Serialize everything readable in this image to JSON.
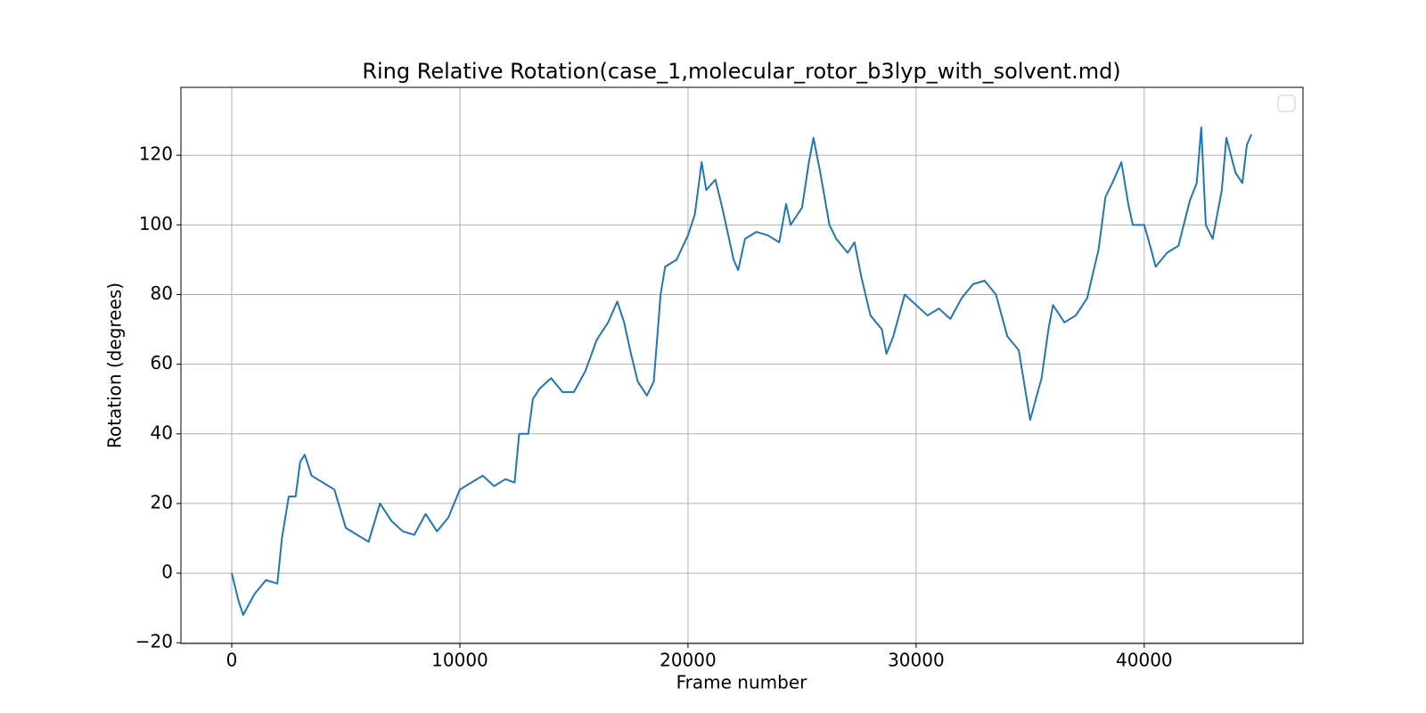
{
  "chart_data": {
    "type": "line",
    "title": "Ring Relative Rotation(case_1,molecular_rotor_b3lyp_with_solvent.md)",
    "xlabel": "Frame number",
    "ylabel": "Rotation (degrees)",
    "x": [
      0,
      300,
      500,
      1000,
      1500,
      2000,
      2200,
      2500,
      2800,
      3000,
      3200,
      3500,
      4000,
      4500,
      5000,
      5500,
      6000,
      6500,
      7000,
      7500,
      8000,
      8500,
      9000,
      9500,
      10000,
      10500,
      11000,
      11500,
      12000,
      12400,
      12600,
      13000,
      13200,
      13500,
      14000,
      14500,
      15000,
      15500,
      16000,
      16500,
      16900,
      17200,
      17500,
      17800,
      18200,
      18500,
      18800,
      19000,
      19500,
      20000,
      20300,
      20600,
      20800,
      21200,
      21500,
      22000,
      22200,
      22500,
      23000,
      23500,
      24000,
      24300,
      24500,
      25000,
      25300,
      25500,
      25800,
      26200,
      26500,
      27000,
      27300,
      27600,
      28000,
      28500,
      28700,
      29000,
      29500,
      30000,
      30500,
      31000,
      31500,
      32000,
      32500,
      33000,
      33500,
      34000,
      34500,
      35000,
      35500,
      35800,
      36000,
      36500,
      37000,
      37500,
      38000,
      38300,
      38600,
      39000,
      39300,
      39500,
      40000,
      40300,
      40500,
      41000,
      41500,
      42000,
      42300,
      42500,
      42700,
      43000,
      43400,
      43600,
      44000,
      44300,
      44500,
      44700
    ],
    "series": [
      {
        "color": "#1f77b4",
        "values": [
          0,
          -8,
          -12,
          -6,
          -2,
          -3,
          10,
          22,
          22,
          32,
          34,
          28,
          26,
          24,
          13,
          11,
          9,
          20,
          15,
          12,
          11,
          17,
          12,
          16,
          24,
          26,
          28,
          25,
          27,
          26,
          40,
          40,
          50,
          53,
          56,
          52,
          52,
          58,
          67,
          72,
          78,
          72,
          63,
          55,
          51,
          55,
          80,
          88,
          90,
          97,
          103,
          118,
          110,
          113,
          105,
          90,
          87,
          96,
          98,
          97,
          95,
          106,
          100,
          105,
          118,
          125,
          115,
          100,
          96,
          92,
          95,
          85,
          74,
          70,
          63,
          68,
          80,
          77,
          74,
          76,
          73,
          79,
          83,
          84,
          80,
          68,
          64,
          44,
          56,
          70,
          77,
          72,
          74,
          79,
          93,
          108,
          112,
          118,
          106,
          100,
          100,
          93,
          88,
          92,
          94,
          107,
          112,
          128,
          100,
          96,
          110,
          125,
          115,
          112,
          123,
          126
        ]
      }
    ],
    "xlim": [
      -2227,
      46960
    ],
    "ylim": [
      -20.2,
      139.5
    ],
    "xticks": [
      0,
      10000,
      20000,
      30000,
      40000
    ],
    "yticks": [
      {
        "value": -20,
        "label": "−20"
      },
      0,
      20,
      40,
      60,
      80,
      100,
      120
    ],
    "grid": true
  }
}
